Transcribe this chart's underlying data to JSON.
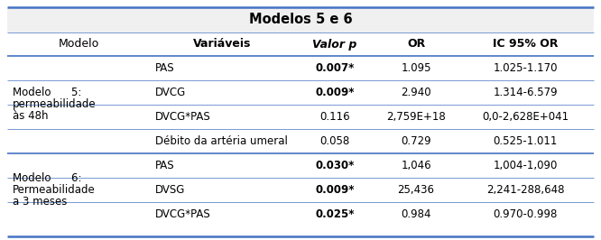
{
  "title": "Modelos 5 e 6",
  "header": [
    "Modelo",
    "Variáveis",
    "Valor p",
    "OR",
    "IC 95% OR"
  ],
  "rows": [
    {
      "var": "PAS",
      "valor_p": "0.007*",
      "or": "1.095",
      "ic": "1.025-1.170",
      "bold_p": true
    },
    {
      "var": "DVCG",
      "valor_p": "0.009*",
      "or": "2.940",
      "ic": "1.314-6.579",
      "bold_p": true
    },
    {
      "var": "DVCG*PAS",
      "valor_p": "0.116",
      "or": "2,759E+18",
      "ic": "0,0-2,628E+041",
      "bold_p": false
    },
    {
      "var": "Débito da artéria umeral",
      "valor_p": "0.058",
      "or": "0.729",
      "ic": "0.525-1.011",
      "bold_p": false
    },
    {
      "var": "PAS",
      "valor_p": "0.030*",
      "or": "1,046",
      "ic": "1,004-1,090",
      "bold_p": true
    },
    {
      "var": "DVSG",
      "valor_p": "0.009*",
      "or": "25,436",
      "ic": "2,241-288,648",
      "bold_p": true
    },
    {
      "var": "DVCG*PAS",
      "valor_p": "0.025*",
      "or": "0.984",
      "ic": "0.970-0.998",
      "bold_p": true
    }
  ],
  "model5_label": [
    "Modelo      5:",
    "permeabilidade",
    "às 48h"
  ],
  "model6_label": [
    "Modelo      6:",
    "Permeabilidade",
    "a 3 meses"
  ],
  "line_color": "#4472C4",
  "font_size": 8.5,
  "title_font_size": 10.5,
  "header_font_size": 9.0,
  "bg_title": "#E8E8E8",
  "bg_white": "#FFFFFF"
}
